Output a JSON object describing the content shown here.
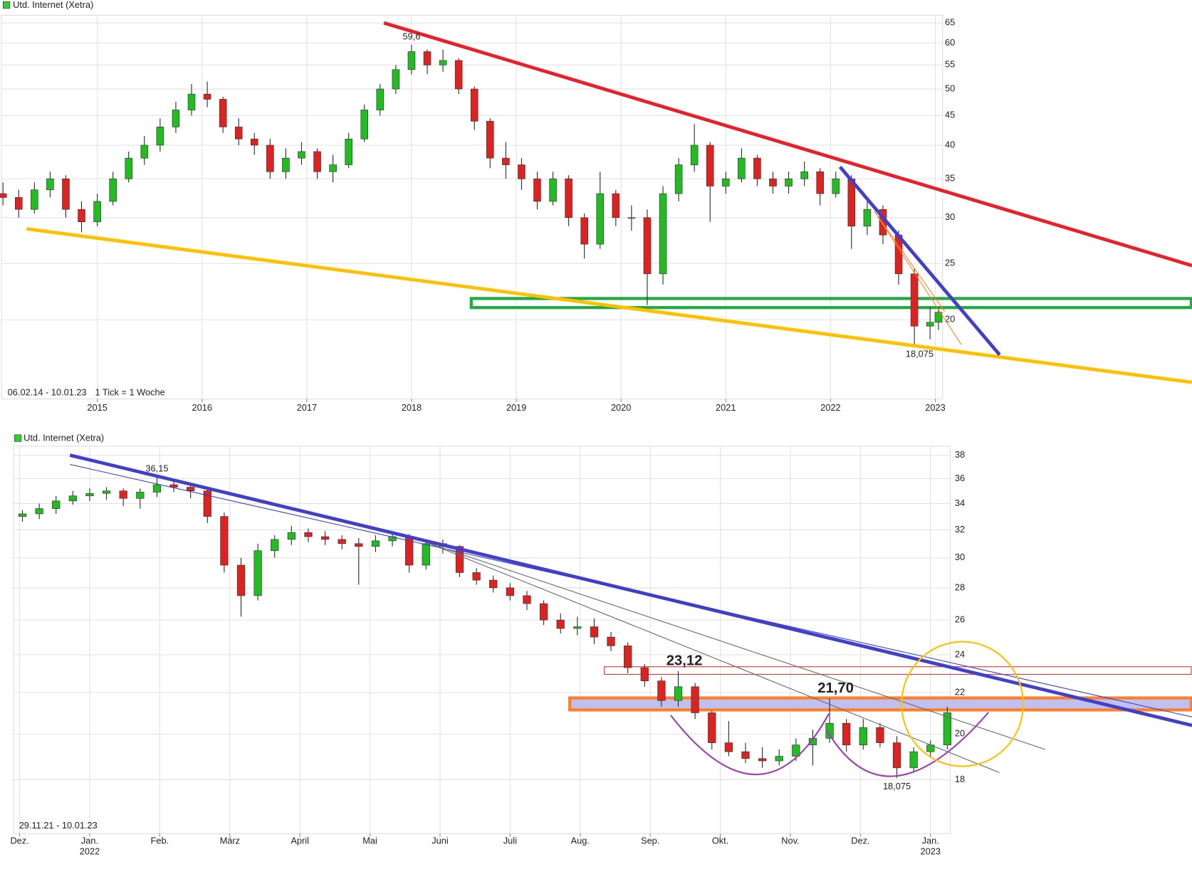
{
  "chart_data": [
    {
      "type": "candlestick",
      "log_scale": true,
      "grid": true,
      "date_range": "06.02.14 - 10.01.23",
      "tick_note": "1 Tick = 1 Woche",
      "xlim": [
        2014.086,
        2023.07
      ],
      "xticks": [
        2015,
        2016,
        2017,
        2018,
        2019,
        2020,
        2021,
        2022,
        2023
      ],
      "ylim": [
        14.6,
        67
      ],
      "yticks": [
        20,
        25,
        30,
        35,
        40,
        45,
        50,
        55,
        60,
        65
      ],
      "series": [
        {
          "name": "Utd. Internet (Xetra)",
          "color": "#33cc33",
          "up_color": "#22bb22",
          "down_color": "#dd2222",
          "x": [
            2014.1,
            2014.25,
            2014.4,
            2014.55,
            2014.7,
            2014.85,
            2015.0,
            2015.15,
            2015.3,
            2015.45,
            2015.6,
            2015.75,
            2015.9,
            2016.05,
            2016.2,
            2016.35,
            2016.5,
            2016.65,
            2016.8,
            2016.95,
            2017.1,
            2017.25,
            2017.4,
            2017.55,
            2017.7,
            2017.85,
            2018.0,
            2018.15,
            2018.3,
            2018.45,
            2018.6,
            2018.75,
            2018.9,
            2019.05,
            2019.2,
            2019.35,
            2019.5,
            2019.65,
            2019.8,
            2019.95,
            2020.1,
            2020.25,
            2020.4,
            2020.55,
            2020.7,
            2020.85,
            2021.0,
            2021.15,
            2021.3,
            2021.45,
            2021.6,
            2021.75,
            2021.9,
            2022.05,
            2022.2,
            2022.35,
            2022.5,
            2022.65,
            2022.8,
            2022.95,
            2023.03
          ],
          "open": [
            33,
            32.5,
            31,
            33.5,
            35,
            31,
            29.5,
            32,
            35,
            38,
            40,
            43,
            46,
            49,
            48,
            43,
            41,
            40,
            36,
            38,
            39,
            36,
            37,
            41,
            46,
            50,
            54,
            58,
            55,
            56,
            50,
            44,
            38,
            37,
            35,
            32,
            35,
            30,
            27,
            33,
            30,
            30,
            24,
            33,
            37,
            40,
            34,
            35,
            38,
            35,
            34,
            35,
            36,
            33,
            35,
            29,
            31,
            28,
            24,
            19.5,
            19.8
          ],
          "high": [
            34.5,
            33.5,
            34.5,
            36,
            35.5,
            32,
            33,
            36,
            39,
            41.5,
            44.5,
            47.5,
            51,
            51.5,
            48.5,
            44.5,
            42,
            41,
            39.5,
            40.5,
            39.5,
            38.5,
            42,
            47,
            51,
            55,
            59.6,
            58.5,
            58.5,
            56.5,
            50.5,
            44.5,
            40.5,
            38,
            36,
            36,
            35.5,
            30.5,
            36,
            33.5,
            31.5,
            31,
            34,
            38,
            43.5,
            40.5,
            36,
            39.5,
            38.5,
            36,
            36,
            37.5,
            36.5,
            36,
            35.5,
            32,
            31.5,
            28.5,
            24.5,
            21,
            21
          ],
          "low": [
            31.5,
            30,
            30.5,
            32.5,
            30,
            28.3,
            29,
            31.5,
            34.5,
            37,
            39,
            42,
            45,
            46.5,
            42,
            40,
            38.5,
            35,
            35,
            37,
            35,
            34.5,
            36.5,
            40.5,
            45,
            49,
            53,
            53,
            53.5,
            49,
            42.5,
            36.5,
            35,
            33.5,
            31,
            31.5,
            29,
            25.5,
            26.5,
            29,
            28.5,
            21.2,
            23,
            32,
            36,
            29.5,
            33,
            34.5,
            34,
            33,
            33,
            34,
            31.5,
            32.5,
            26.5,
            28,
            27,
            23,
            18.075,
            18.5,
            19.2
          ],
          "close": [
            32.5,
            31,
            33.5,
            35,
            31,
            29.5,
            32,
            35,
            38,
            40,
            43,
            46,
            49,
            48,
            43,
            41,
            40,
            36,
            38,
            39,
            36,
            37,
            41,
            46,
            50,
            54,
            58,
            55,
            56,
            50,
            44,
            38,
            37,
            35,
            32,
            35,
            30,
            27,
            33,
            30,
            30,
            24,
            33,
            37,
            40,
            34,
            35,
            38,
            35,
            34,
            35,
            36,
            33,
            35,
            29,
            31,
            28,
            24,
            19.5,
            19.8,
            20.6
          ]
        }
      ],
      "annotations": [
        {
          "label": "59,6",
          "value": 59.6,
          "x": 2018.0,
          "position": "above"
        },
        {
          "label": "18,075",
          "value": 18.075,
          "x": 2022.85,
          "position": "below"
        }
      ],
      "trendlines": [
        {
          "color": "#e8202a",
          "weight": "thick",
          "points": [
            [
              2017.736,
              65.0
            ],
            [
              2025.45,
              24.8
            ]
          ]
        },
        {
          "color": "#ffc000",
          "weight": "thick",
          "points": [
            [
              2014.325,
              28.7
            ],
            [
              2025.45,
              15.6
            ]
          ]
        },
        {
          "color": "#4040c8",
          "weight": "thick",
          "points": [
            [
              2022.09,
              36.7
            ],
            [
              2023.614,
              17.4
            ]
          ]
        },
        {
          "color": "#ff8020",
          "weight": "thin",
          "points": [
            [
              2022.416,
              30.8
            ],
            [
              2023.25,
              18.1
            ]
          ]
        },
        {
          "color": "#ff8020",
          "weight": "thin",
          "points": [
            [
              2022.416,
              30.8
            ],
            [
              2023.09,
              20.67
            ]
          ]
        }
      ],
      "bands": [
        {
          "x0": 2018.57,
          "y0": 20.99,
          "y1": 21.76,
          "stroke": "#22aa44",
          "fill": "none",
          "weight": "thick"
        }
      ]
    },
    {
      "type": "candlestick",
      "log_scale": true,
      "grid": true,
      "date_range": "29.11.21 - 10.01.23",
      "xlim": [
        2021.9096,
        2023.0235
      ],
      "xticks": [
        {
          "value": 2021.9167,
          "label": "Dez."
        },
        {
          "value": 2022.0,
          "label": "Jan."
        },
        {
          "value": 2022.0833,
          "label": "Feb."
        },
        {
          "value": 2022.1667,
          "label": "März"
        },
        {
          "value": 2022.25,
          "label": "April"
        },
        {
          "value": 2022.3333,
          "label": "Mai"
        },
        {
          "value": 2022.4167,
          "label": "Juni"
        },
        {
          "value": 2022.5,
          "label": "Juli"
        },
        {
          "value": 2022.5833,
          "label": "Aug."
        },
        {
          "value": 2022.6667,
          "label": "Sep."
        },
        {
          "value": 2022.75,
          "label": "Okt."
        },
        {
          "value": 2022.8333,
          "label": "Nov."
        },
        {
          "value": 2022.9167,
          "label": "Dez."
        },
        {
          "value": 2023.0,
          "label": "Jan."
        }
      ],
      "xtick_years": [
        2022,
        2023
      ],
      "ylim": [
        15.9,
        38.8
      ],
      "yticks": [
        18,
        20,
        22,
        24,
        26,
        28,
        30,
        32,
        34,
        36,
        38
      ],
      "series": [
        {
          "name": "Utd. Internet (Xetra)",
          "color": "#33cc33",
          "up_color": "#22bb22",
          "down_color": "#dd2222",
          "x": [
            2021.92,
            2021.94,
            2021.96,
            2021.98,
            2022.0,
            2022.02,
            2022.04,
            2022.06,
            2022.08,
            2022.1,
            2022.12,
            2022.14,
            2022.16,
            2022.18,
            2022.2,
            2022.22,
            2022.24,
            2022.26,
            2022.28,
            2022.3,
            2022.32,
            2022.34,
            2022.36,
            2022.38,
            2022.4,
            2022.42,
            2022.44,
            2022.46,
            2022.48,
            2022.5,
            2022.52,
            2022.54,
            2022.56,
            2022.58,
            2022.6,
            2022.62,
            2022.64,
            2022.66,
            2022.68,
            2022.7,
            2022.72,
            2022.74,
            2022.76,
            2022.78,
            2022.8,
            2022.82,
            2022.84,
            2022.86,
            2022.88,
            2022.9,
            2022.92,
            2022.94,
            2022.96,
            2022.98,
            2023.0,
            2023.02
          ],
          "open": [
            33.0,
            33.2,
            33.6,
            34.2,
            34.6,
            34.8,
            35.0,
            34.4,
            34.9,
            35.5,
            35.3,
            35.0,
            33.0,
            29.5,
            27.5,
            30.5,
            31.3,
            31.8,
            31.5,
            31.3,
            31.0,
            30.8,
            31.2,
            31.5,
            29.5,
            31.0,
            30.8,
            29.0,
            28.5,
            28.0,
            27.5,
            27.0,
            26.0,
            25.5,
            25.6,
            25.0,
            24.5,
            23.3,
            22.6,
            21.6,
            22.3,
            21.0,
            19.6,
            19.2,
            18.9,
            18.8,
            19.0,
            19.5,
            19.8,
            20.5,
            19.5,
            20.3,
            19.6,
            18.5,
            19.2,
            19.5
          ],
          "high": [
            33.5,
            34.0,
            34.6,
            35.0,
            35.2,
            35.3,
            35.2,
            35.2,
            36.15,
            35.8,
            35.6,
            35.2,
            33.3,
            30.0,
            31.0,
            31.6,
            32.3,
            32.1,
            31.9,
            31.6,
            31.4,
            31.6,
            31.8,
            31.7,
            31.3,
            31.3,
            30.9,
            29.3,
            28.8,
            28.3,
            27.8,
            27.2,
            26.4,
            26.2,
            26.1,
            25.3,
            24.7,
            23.5,
            22.8,
            23.12,
            22.5,
            21.1,
            20.6,
            19.6,
            19.4,
            19.3,
            19.8,
            20.2,
            21.7,
            20.7,
            20.7,
            20.5,
            19.9,
            19.4,
            19.7,
            21.3
          ],
          "low": [
            32.6,
            32.8,
            33.2,
            33.9,
            34.2,
            34.3,
            33.8,
            33.6,
            34.5,
            34.9,
            34.4,
            32.5,
            29.0,
            26.2,
            27.2,
            30.0,
            30.9,
            31.1,
            30.9,
            30.6,
            28.2,
            30.4,
            30.8,
            29.0,
            29.2,
            30.3,
            28.7,
            28.2,
            27.7,
            27.2,
            26.6,
            25.7,
            25.2,
            25.1,
            24.6,
            24.2,
            23.0,
            22.3,
            21.3,
            21.3,
            20.7,
            19.3,
            19.0,
            18.7,
            18.5,
            18.6,
            18.8,
            18.6,
            19.6,
            19.2,
            19.3,
            19.4,
            18.075,
            18.3,
            19.0,
            19.3
          ],
          "close": [
            33.2,
            33.6,
            34.2,
            34.6,
            34.8,
            35.0,
            34.4,
            34.9,
            35.5,
            35.3,
            35.0,
            33.0,
            29.5,
            27.5,
            30.5,
            31.3,
            31.8,
            31.5,
            31.3,
            31.0,
            30.8,
            31.2,
            31.5,
            29.5,
            31.0,
            30.8,
            29.0,
            28.5,
            28.0,
            27.5,
            27.0,
            26.0,
            25.5,
            25.6,
            25.0,
            24.5,
            23.3,
            22.6,
            21.6,
            22.3,
            21.0,
            19.6,
            19.2,
            18.9,
            18.8,
            19.0,
            19.5,
            19.8,
            20.5,
            19.5,
            20.3,
            19.6,
            18.5,
            19.2,
            19.5,
            21.0
          ]
        }
      ],
      "annotations": [
        {
          "label": "36,15",
          "value": 36.15,
          "x": 2022.08,
          "position": "above"
        },
        {
          "label": "18,075",
          "value": 18.075,
          "x": 2022.96,
          "position": "below"
        },
        {
          "label": "23,12",
          "value": 23.12,
          "x": 2022.7,
          "position": "above",
          "color": "#e8202a",
          "style": "highlight"
        },
        {
          "label": "21,70",
          "value": 21.7,
          "x": 2022.88,
          "position": "above",
          "color": "#e8202a",
          "style": "highlight"
        }
      ],
      "trendlines": [
        {
          "color": "#4040c8",
          "weight": "thick",
          "points": [
            [
              2021.9765,
              38.0
            ],
            [
              2023.311,
              20.4
            ]
          ]
        },
        {
          "color": "#3a3ad0",
          "weight": "thin",
          "points": [
            [
              2021.9765,
              37.2
            ],
            [
              2023.311,
              20.8
            ]
          ]
        },
        {
          "color": "#666666",
          "weight": "thin",
          "points": [
            [
              2022.404,
              31.0
            ],
            [
              2023.1365,
              19.3
            ]
          ]
        },
        {
          "color": "#666666",
          "weight": "thin",
          "points": [
            [
              2022.404,
              31.0
            ],
            [
              2023.082,
              18.3
            ]
          ]
        }
      ],
      "bands": [
        {
          "x0": 2022.612,
          "y0": 22.94,
          "y1": 23.35,
          "stroke": "#e03030",
          "fill": "none",
          "weight": "thin"
        },
        {
          "x0": 2022.571,
          "y0": 21.14,
          "y1": 21.73,
          "stroke": "#ff7f27",
          "fill": "#c0c0f0",
          "weight": "thick"
        }
      ],
      "arcs": [
        {
          "color": "#a040b0",
          "points": [
            [
              2022.691,
              20.88
            ],
            [
              2022.793,
              18.22
            ],
            [
              2022.879,
              20.95
            ]
          ]
        },
        {
          "color": "#a040b0",
          "points": [
            [
              2022.877,
              20.16
            ],
            [
              2022.96,
              18.16
            ],
            [
              2023.069,
              21.02
            ]
          ]
        }
      ],
      "circles": [
        {
          "color": "#ffc000",
          "center": [
            2023.038,
            21.43
          ]
        }
      ]
    }
  ]
}
